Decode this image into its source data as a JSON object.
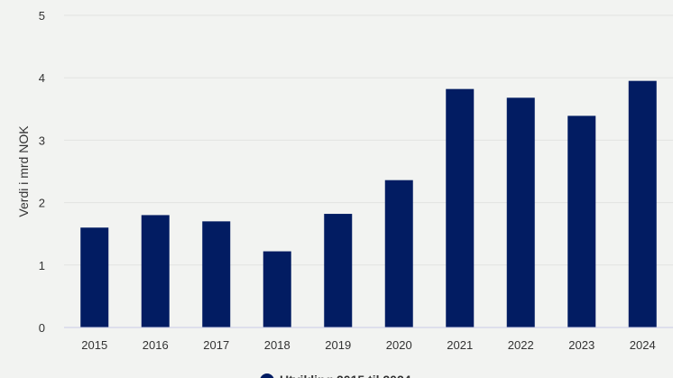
{
  "chart_data": {
    "type": "bar",
    "title": "",
    "xlabel": "",
    "ylabel": "Verdi i mrd NOK",
    "ylim": [
      0,
      5
    ],
    "yticks": [
      "0",
      "1",
      "2",
      "3",
      "4",
      "5"
    ],
    "categories": [
      "2015",
      "2016",
      "2017",
      "2018",
      "2019",
      "2020",
      "2021",
      "2022",
      "2023",
      "2024"
    ],
    "series": [
      {
        "name": "Utvikling 2015 til 2024",
        "color": "#021c62",
        "values": [
          1.6,
          1.8,
          1.7,
          1.22,
          1.82,
          2.36,
          3.82,
          3.68,
          3.39,
          3.95
        ]
      }
    ],
    "grid": true,
    "legend": "bottom-center",
    "colors": {
      "background": "#f2f3f1",
      "grid": "#e2e3e1",
      "axis": "#c9cbe8",
      "text": "#333333"
    }
  }
}
